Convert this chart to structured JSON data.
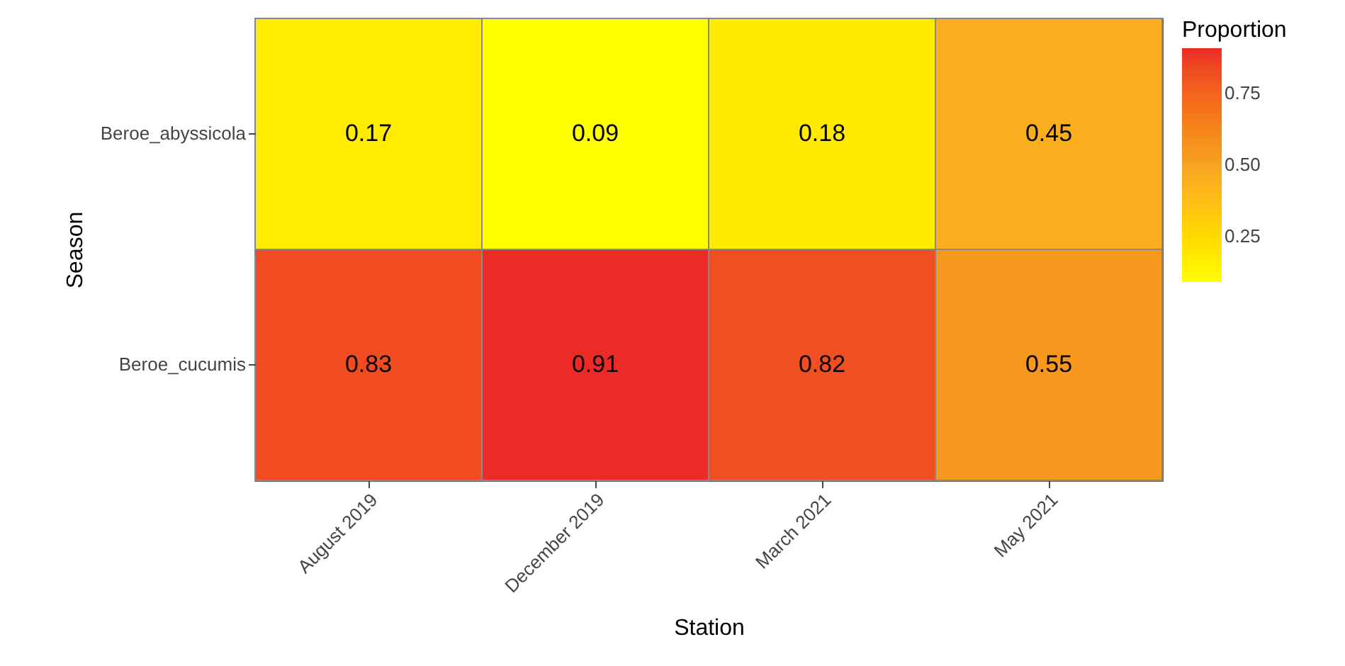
{
  "chart_data": {
    "type": "heatmap",
    "xlabel": "Station",
    "ylabel": "Season",
    "legend_title": "Proportion",
    "categories": [
      "August 2019",
      "December 2019",
      "March 2021",
      "May 2021"
    ],
    "y_categories": [
      "Beroe_abyssicola",
      "Beroe_cucumis"
    ],
    "cells": [
      [
        0.17,
        0.09,
        0.18,
        0.45
      ],
      [
        0.83,
        0.91,
        0.82,
        0.55
      ]
    ],
    "data_labels": true,
    "clim": [
      0.09,
      0.91
    ],
    "cticks": [
      0.25,
      {
        "value": 0.5,
        "label": "0.50"
      },
      0.75
    ]
  }
}
